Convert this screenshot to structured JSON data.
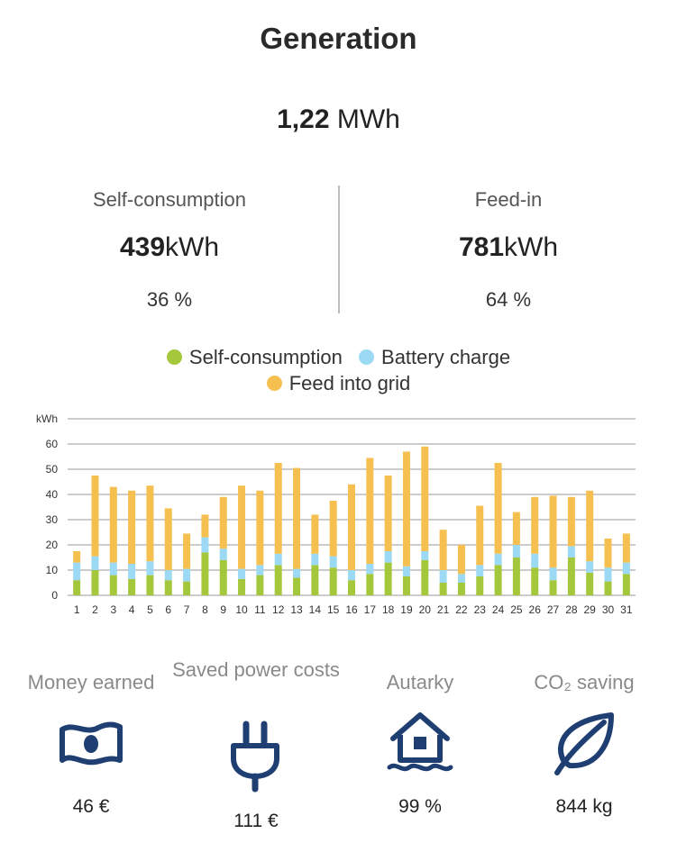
{
  "header": {
    "title": "Generation"
  },
  "total": {
    "value": "1,22",
    "unit": "MWh"
  },
  "self_consumption": {
    "label": "Self-consumption",
    "value": "439",
    "unit": "kWh",
    "percent": "36 %"
  },
  "feed_in": {
    "label": "Feed-in",
    "value": "781",
    "unit": "kWh",
    "percent": "64 %"
  },
  "legend": {
    "self_consumption": "Self-consumption",
    "battery_charge": "Battery charge",
    "feed_into_grid": "Feed into grid"
  },
  "colors": {
    "self_consumption": "#A5C73B",
    "battery_charge": "#9BD9F4",
    "feed_into_grid": "#F5C04F",
    "icon": "#1F3F73"
  },
  "chart_data": {
    "type": "bar",
    "stacked": true,
    "ylabel": "kWh",
    "ylim": [
      0,
      70
    ],
    "yticks": [
      0,
      10,
      20,
      30,
      40,
      50,
      60
    ],
    "grid": true,
    "legend_position": "top",
    "categories": [
      "1",
      "2",
      "3",
      "4",
      "5",
      "6",
      "7",
      "8",
      "9",
      "10",
      "11",
      "12",
      "13",
      "14",
      "15",
      "16",
      "17",
      "18",
      "19",
      "20",
      "21",
      "22",
      "23",
      "24",
      "25",
      "26",
      "27",
      "28",
      "29",
      "30",
      "31"
    ],
    "series": [
      {
        "name": "Self-consumption",
        "values": [
          6,
          10,
          8,
          6.5,
          8,
          6,
          5.5,
          17,
          14,
          6.5,
          8,
          12,
          7,
          12,
          11,
          6,
          8.5,
          13,
          7.5,
          14,
          5,
          5,
          7.5,
          12,
          15,
          11,
          6,
          15,
          9,
          5.5,
          8.5
        ]
      },
      {
        "name": "Battery charge",
        "values": [
          7,
          5.5,
          5,
          6,
          5.5,
          4,
          5,
          6,
          4.5,
          4,
          4,
          4.5,
          3.5,
          4.5,
          4.5,
          4,
          4,
          4.5,
          4,
          3.5,
          5,
          3.5,
          4.5,
          4.5,
          5,
          5.5,
          5,
          4.5,
          4.5,
          5.5,
          4.5
        ]
      },
      {
        "name": "Feed into grid",
        "values": [
          4.5,
          32,
          30,
          29,
          30,
          24.5,
          14,
          9,
          20.5,
          33,
          29.5,
          36,
          40,
          15.5,
          22,
          34,
          42,
          30,
          45.5,
          41.5,
          16,
          11.5,
          23.5,
          36,
          13,
          22.5,
          28.5,
          19.5,
          28,
          11.5,
          11.5
        ]
      }
    ]
  },
  "kpis": [
    {
      "label": "Money earned",
      "icon": "banknote-icon",
      "value": "46 €"
    },
    {
      "label": "Saved power costs",
      "icon": "plug-icon",
      "value": "111 €"
    },
    {
      "label": "Autarky",
      "icon": "house-icon",
      "value": "99 %"
    },
    {
      "label": "CO₂ saving",
      "icon": "leaf-icon",
      "value": "844 kg"
    }
  ]
}
